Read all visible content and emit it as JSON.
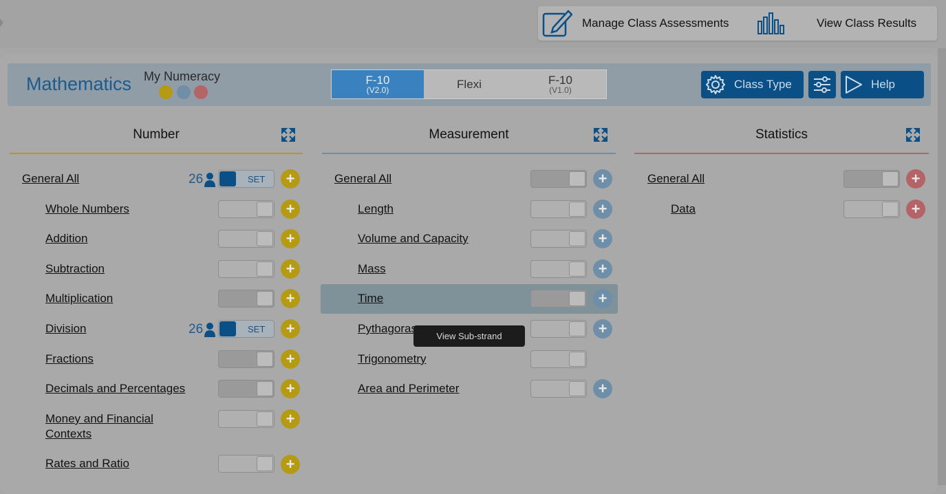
{
  "top_actions": {
    "manage_label": "Manage Class Assessments",
    "results_label": "View Class Results"
  },
  "header": {
    "subject": "Mathematics",
    "numeracy_label": "My Numeracy",
    "dot_colors": [
      "#b59a14",
      "#6f8ea8",
      "#b46466"
    ],
    "versions": [
      {
        "main": "F-10",
        "sub": "(V2.0)",
        "active": true
      },
      {
        "main": "Flexi",
        "sub": ""
      },
      {
        "main": "F-10",
        "sub": "(V1.0)"
      }
    ],
    "class_type_label": "Class Type",
    "help_label": "Help"
  },
  "columns": [
    {
      "title": "Number",
      "accent": "#b59a14",
      "rows": [
        {
          "label": "General All",
          "count": "26",
          "set_label": "SET"
        },
        {
          "label": "Whole Numbers"
        },
        {
          "label": "Addition"
        },
        {
          "label": "Subtraction"
        },
        {
          "label": "Multiplication"
        },
        {
          "label": "Division",
          "count": "26",
          "set_label": "SET"
        },
        {
          "label": "Fractions"
        },
        {
          "label": "Decimals and Percentages"
        },
        {
          "label": "Money and Financial Contexts"
        },
        {
          "label": "Rates and Ratio"
        }
      ]
    },
    {
      "title": "Measurement",
      "accent": "#6f8ea8",
      "rows": [
        {
          "label": "General All"
        },
        {
          "label": "Length"
        },
        {
          "label": "Volume and Capacity"
        },
        {
          "label": "Mass"
        },
        {
          "label": "Time"
        },
        {
          "label": "Pythagoras"
        },
        {
          "label": "Trigonometry"
        },
        {
          "label": "Area and Perimeter"
        }
      ]
    },
    {
      "title": "Statistics",
      "accent": "#b46466",
      "rows": [
        {
          "label": "General All"
        },
        {
          "label": "Data"
        }
      ]
    }
  ],
  "tooltip": "View Sub-strand",
  "icons": {
    "expand": "expand-icon",
    "edit": "edit-icon",
    "chart": "bar-chart-icon",
    "gear": "gear-icon",
    "sliders": "sliders-icon",
    "play": "play-icon",
    "person": "person-icon",
    "plus": "plus-icon"
  }
}
